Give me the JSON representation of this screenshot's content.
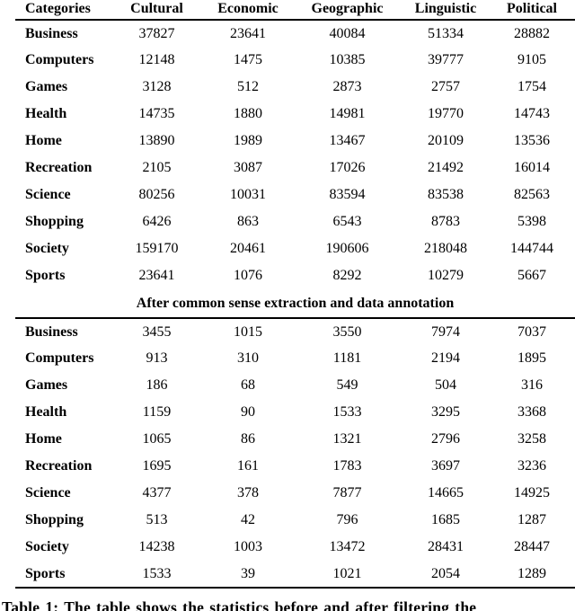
{
  "table": {
    "columns": [
      "Categories",
      "Cultural",
      "Economic",
      "Geographic",
      "Linguistic",
      "Political"
    ],
    "before_rows": [
      {
        "category": "Business",
        "values": [
          37827,
          23641,
          40084,
          51334,
          28882
        ]
      },
      {
        "category": "Computers",
        "values": [
          12148,
          1475,
          10385,
          39777,
          9105
        ]
      },
      {
        "category": "Games",
        "values": [
          3128,
          512,
          2873,
          2757,
          1754
        ]
      },
      {
        "category": "Health",
        "values": [
          14735,
          1880,
          14981,
          19770,
          14743
        ]
      },
      {
        "category": "Home",
        "values": [
          13890,
          1989,
          13467,
          20109,
          13536
        ]
      },
      {
        "category": "Recreation",
        "values": [
          2105,
          3087,
          17026,
          21492,
          16014
        ]
      },
      {
        "category": "Science",
        "values": [
          80256,
          10031,
          83594,
          83538,
          82563
        ]
      },
      {
        "category": "Shopping",
        "values": [
          6426,
          863,
          6543,
          8783,
          5398
        ]
      },
      {
        "category": "Society",
        "values": [
          159170,
          20461,
          190606,
          218048,
          144744
        ]
      },
      {
        "category": "Sports",
        "values": [
          23641,
          1076,
          8292,
          10279,
          5667
        ]
      }
    ],
    "section_header": "After common sense extraction and data annotation",
    "after_rows": [
      {
        "category": "Business",
        "values": [
          3455,
          1015,
          3550,
          7974,
          7037
        ]
      },
      {
        "category": "Computers",
        "values": [
          913,
          310,
          1181,
          2194,
          1895
        ]
      },
      {
        "category": "Games",
        "values": [
          186,
          68,
          549,
          504,
          316
        ]
      },
      {
        "category": "Health",
        "values": [
          1159,
          90,
          1533,
          3295,
          3368
        ]
      },
      {
        "category": "Home",
        "values": [
          1065,
          86,
          1321,
          2796,
          3258
        ]
      },
      {
        "category": "Recreation",
        "values": [
          1695,
          161,
          1783,
          3697,
          3236
        ]
      },
      {
        "category": "Science",
        "values": [
          4377,
          378,
          7877,
          14665,
          14925
        ]
      },
      {
        "category": "Shopping",
        "values": [
          513,
          42,
          796,
          1685,
          1287
        ]
      },
      {
        "category": "Society",
        "values": [
          14238,
          1003,
          13472,
          28431,
          28447
        ]
      },
      {
        "category": "Sports",
        "values": [
          1533,
          39,
          1021,
          2054,
          1289
        ]
      }
    ]
  },
  "caption": "Table 1: The table shows the statistics before and after filtering the"
}
